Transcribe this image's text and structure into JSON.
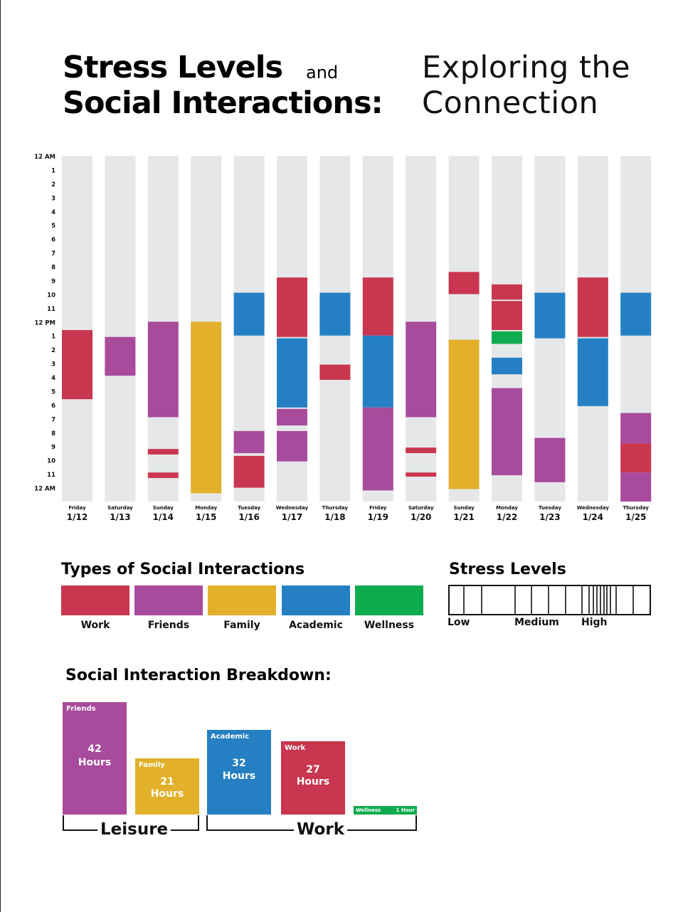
{
  "title": {
    "line1": "Stress Levels",
    "conj": "and",
    "line2": "Social Interactions:",
    "sub1": "Exploring the",
    "sub2": "Connection"
  },
  "colors": {
    "track": "#e6e7e8",
    "work": "#c9364f",
    "friends": "#a84b9c",
    "family": "#e2b02a",
    "academic": "#2580c3",
    "wellness": "#0fac4f"
  },
  "legend": {
    "heading": "Types of Social Interactions",
    "items": [
      {
        "key": "work",
        "label": "Work"
      },
      {
        "key": "friends",
        "label": "Friends"
      },
      {
        "key": "family",
        "label": "Family"
      },
      {
        "key": "academic",
        "label": "Academic"
      },
      {
        "key": "wellness",
        "label": "Wellness"
      }
    ]
  },
  "stress": {
    "heading": "Stress Levels",
    "low": "Low",
    "medium": "Medium",
    "high": "High"
  },
  "breakdown": {
    "heading": "Social Interaction Breakdown:",
    "friends": {
      "name": "Friends",
      "num": "42",
      "unit": "Hours"
    },
    "family": {
      "name": "Family",
      "num": "21",
      "unit": "Hours"
    },
    "academic": {
      "name": "Academic",
      "num": "32",
      "unit": "Hours"
    },
    "work": {
      "name": "Work",
      "num": "27",
      "unit": "Hours"
    },
    "wellness": {
      "name": "Wellness",
      "value": "1 Hour"
    },
    "groups": {
      "leisure": "Leisure",
      "work": "Work"
    }
  },
  "chart_data": {
    "type": "bar",
    "hour_labels": [
      "12 AM",
      "1",
      "2",
      "3",
      "4",
      "5",
      "6",
      "7",
      "8",
      "9",
      "10",
      "11",
      "12 PM",
      "1",
      "2",
      "3",
      "4",
      "5",
      "6",
      "7",
      "8",
      "9",
      "10",
      "11",
      "12 AM"
    ],
    "days": [
      {
        "weekday": "Friday",
        "date": "1/12",
        "segments": [
          {
            "type": "work",
            "start": 12.6,
            "end": 17.6
          }
        ]
      },
      {
        "weekday": "Saturday",
        "date": "1/13",
        "segments": [
          {
            "type": "friends",
            "start": 13.1,
            "end": 15.9
          }
        ]
      },
      {
        "weekday": "Sunday",
        "date": "1/14",
        "segments": [
          {
            "type": "friends",
            "start": 12.0,
            "end": 18.9
          },
          {
            "type": "work",
            "start": 21.2,
            "end": 21.6
          },
          {
            "type": "work",
            "start": 22.9,
            "end": 23.3
          }
        ]
      },
      {
        "weekday": "Monday",
        "date": "1/15",
        "segments": [
          {
            "type": "family",
            "start": 12.0,
            "end": 24.4
          }
        ]
      },
      {
        "weekday": "Tuesday",
        "date": "1/16",
        "segments": [
          {
            "type": "academic",
            "start": 9.9,
            "end": 13.0
          },
          {
            "type": "friends",
            "start": 19.9,
            "end": 21.5
          },
          {
            "type": "work",
            "start": 21.7,
            "end": 24.0
          }
        ]
      },
      {
        "weekday": "Wednesday",
        "date": "1/17",
        "segments": [
          {
            "type": "work",
            "start": 8.8,
            "end": 13.1
          },
          {
            "type": "academic",
            "start": 13.2,
            "end": 18.2
          },
          {
            "type": "friends",
            "start": 18.3,
            "end": 19.5
          },
          {
            "type": "friends",
            "start": 19.9,
            "end": 22.1
          }
        ]
      },
      {
        "weekday": "Thursday",
        "date": "1/18",
        "segments": [
          {
            "type": "academic",
            "start": 9.9,
            "end": 13.0
          },
          {
            "type": "work",
            "start": 15.1,
            "end": 16.2
          }
        ]
      },
      {
        "weekday": "Friday",
        "date": "1/19",
        "segments": [
          {
            "type": "work",
            "start": 8.8,
            "end": 13.0
          },
          {
            "type": "academic",
            "start": 13.0,
            "end": 18.2
          },
          {
            "type": "friends",
            "start": 18.2,
            "end": 24.2
          }
        ]
      },
      {
        "weekday": "Saturday",
        "date": "1/20",
        "segments": [
          {
            "type": "friends",
            "start": 12.0,
            "end": 18.9
          },
          {
            "type": "work",
            "start": 21.1,
            "end": 21.5
          },
          {
            "type": "work",
            "start": 22.9,
            "end": 23.2
          }
        ]
      },
      {
        "weekday": "Sunday",
        "date": "1/21",
        "segments": [
          {
            "type": "work",
            "start": 8.4,
            "end": 10.0
          },
          {
            "type": "family",
            "start": 13.3,
            "end": 24.1
          }
        ]
      },
      {
        "weekday": "Monday",
        "date": "1/22",
        "segments": [
          {
            "type": "work",
            "start": 9.3,
            "end": 10.4
          },
          {
            "type": "work",
            "start": 10.5,
            "end": 12.6
          },
          {
            "type": "wellness",
            "start": 12.7,
            "end": 13.6
          },
          {
            "type": "academic",
            "start": 14.6,
            "end": 15.8
          },
          {
            "type": "friends",
            "start": 16.8,
            "end": 23.1
          }
        ]
      },
      {
        "weekday": "Tuesday",
        "date": "1/23",
        "segments": [
          {
            "type": "academic",
            "start": 9.9,
            "end": 13.2
          },
          {
            "type": "friends",
            "start": 20.4,
            "end": 23.6
          }
        ]
      },
      {
        "weekday": "Wednesday",
        "date": "1/24",
        "segments": [
          {
            "type": "work",
            "start": 8.8,
            "end": 13.1
          },
          {
            "type": "academic",
            "start": 13.2,
            "end": 18.1
          }
        ]
      },
      {
        "weekday": "Thursday",
        "date": "1/25",
        "segments": [
          {
            "type": "academic",
            "start": 9.9,
            "end": 13.0
          },
          {
            "type": "friends",
            "start": 18.6,
            "end": 20.8
          },
          {
            "type": "work",
            "start": 20.8,
            "end": 22.9
          },
          {
            "type": "friends",
            "start": 22.9,
            "end": 25.1
          }
        ]
      }
    ],
    "breakdown_hours": [
      {
        "type": "friends",
        "name": "Friends",
        "hours": 42
      },
      {
        "type": "family",
        "name": "Family",
        "hours": 21
      },
      {
        "type": "academic",
        "name": "Academic",
        "hours": 32
      },
      {
        "type": "work",
        "name": "Work",
        "hours": 27
      },
      {
        "type": "wellness",
        "name": "Wellness",
        "hours": 1
      }
    ]
  }
}
